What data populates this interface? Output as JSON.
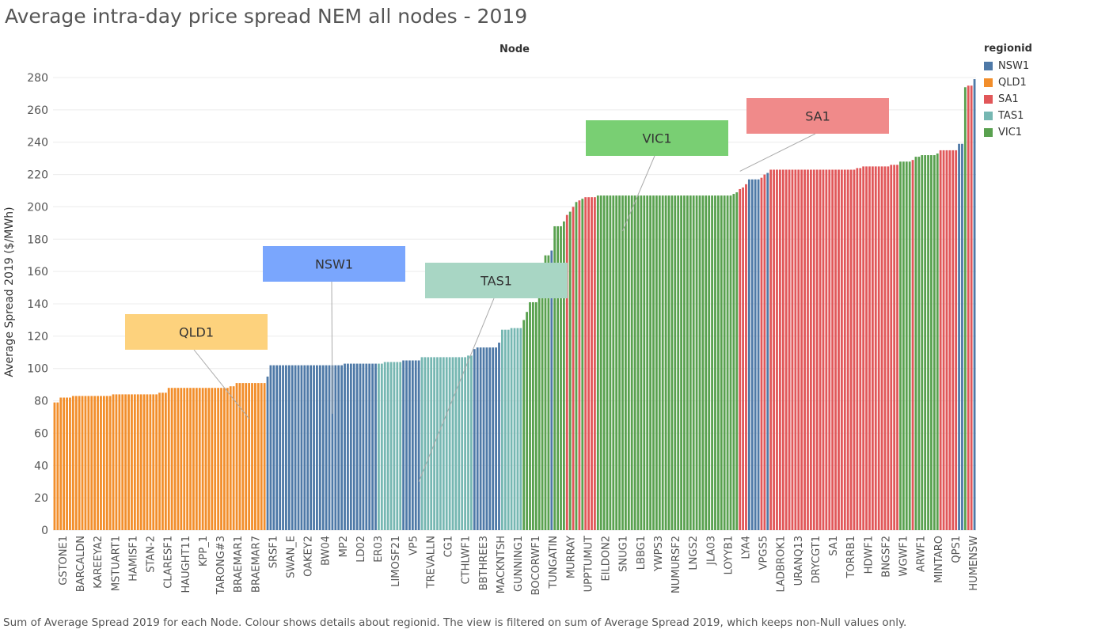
{
  "page": {
    "title": "Average intra-day price spread NEM all nodes - 2019",
    "caption": "Sum of Average Spread 2019 for each Node.  Colour shows details about regionid. The view is filtered on sum of Average Spread 2019, which keeps non-Null values only."
  },
  "colors": {
    "NSW1": "#4e79a7",
    "QLD1": "#f28e2b",
    "SA1": "#e15759",
    "TAS1": "#76b7b2",
    "VIC1": "#59a14f",
    "grid": "#ececec"
  },
  "legend": {
    "title": "regionid",
    "items": [
      {
        "label": "NSW1",
        "color": "#4e79a7"
      },
      {
        "label": "QLD1",
        "color": "#f28e2b"
      },
      {
        "label": "SA1",
        "color": "#e15759"
      },
      {
        "label": "TAS1",
        "color": "#76b7b2"
      },
      {
        "label": "VIC1",
        "color": "#59a14f"
      }
    ]
  },
  "chart_data": {
    "type": "bar",
    "xlabel": "Node",
    "ylabel": "Average Spread 2019 ($/MWh)",
    "ylim": [
      0,
      280
    ],
    "yticks": [
      0,
      20,
      40,
      60,
      80,
      100,
      120,
      140,
      160,
      180,
      200,
      220,
      240,
      260,
      280
    ],
    "grid": true,
    "legend_position": "right",
    "categories": [
      "GSTONE1",
      "BARCALDN",
      "KAREEYA2",
      "MSTUART1",
      "HAMISF1",
      "STAN-2",
      "CLARESF1",
      "HAUGHT11",
      "KPP_1",
      "TARONG#3",
      "BRAEMAR1",
      "BRAEMAR7",
      "SRSF1",
      "SWAN_E",
      "OAKEY2",
      "BW04",
      "MP2",
      "LD02",
      "ER03",
      "LIMOSF21",
      "VP5",
      "TREVALLN",
      "CG1",
      "CTHLWF1",
      "BBTHREE3",
      "MACKNTSH",
      "GUNNING1",
      "BOCORWF1",
      "TUNGATIN",
      "MURRAY",
      "UPPTUMUT",
      "EILDON2",
      "SNUG1",
      "LBBG1",
      "YWPS3",
      "NUMURSF2",
      "LNGS2",
      "JLA03",
      "LOYYB1",
      "LYA4",
      "VPGS5",
      "LADBROK1",
      "URANQ13",
      "DRYCGT1",
      "SA1",
      "TORRB1",
      "HDWF1",
      "BNGSF2",
      "WGWF1",
      "ARWF1",
      "MINTARO",
      "QPS1",
      "HUMENSW"
    ],
    "segments": [
      {
        "region": "QLD1",
        "values": [
          79,
          79,
          82,
          82,
          82,
          82,
          83,
          83,
          83,
          83,
          83,
          83,
          83,
          83,
          83,
          83,
          83,
          83,
          83,
          84,
          84,
          84,
          84,
          84,
          84,
          84,
          84,
          84,
          84,
          84,
          84,
          84,
          84,
          84,
          85,
          85,
          85,
          88,
          88,
          88,
          88,
          88,
          88,
          88,
          88,
          88,
          88,
          88,
          88,
          88,
          88,
          88,
          88,
          88,
          88,
          88,
          88,
          89,
          89,
          91,
          91,
          91,
          91,
          91,
          91,
          91,
          91,
          91,
          91
        ]
      },
      {
        "region": "NSW1",
        "values": [
          95,
          102,
          102,
          102,
          102,
          102,
          102,
          102,
          102,
          102,
          102,
          102,
          102,
          102,
          102,
          102,
          102,
          102,
          102,
          102,
          102,
          102,
          102,
          102,
          102,
          103,
          103,
          103,
          103,
          103,
          103,
          103,
          103,
          103,
          103,
          103
        ]
      },
      {
        "region": "TAS1",
        "values": [
          103,
          103,
          104,
          104,
          104,
          104,
          104,
          104
        ]
      },
      {
        "region": "NSW1",
        "values": [
          105,
          105,
          105,
          105,
          105,
          105
        ]
      },
      {
        "region": "TAS1",
        "values": [
          107,
          107,
          107,
          107,
          107,
          107,
          107,
          107,
          107,
          107,
          107,
          107,
          107,
          107,
          107,
          108,
          108
        ]
      },
      {
        "region": "NSW1",
        "values": [
          112,
          113,
          113,
          113,
          113,
          113,
          113,
          113,
          116
        ]
      },
      {
        "region": "TAS1",
        "values": [
          124,
          124,
          124,
          125,
          125,
          125,
          125
        ]
      },
      {
        "region": "VIC1",
        "values": [
          130,
          135,
          141,
          141,
          141,
          146,
          162,
          170,
          170
        ]
      },
      {
        "region": "NSW1",
        "values": [
          173
        ]
      },
      {
        "region": "VIC1",
        "values": [
          188,
          188,
          188,
          191
        ]
      },
      {
        "region": "SA1",
        "values": [
          195
        ]
      },
      {
        "region": "VIC1",
        "values": [
          197
        ]
      },
      {
        "region": "SA1",
        "values": [
          200
        ]
      },
      {
        "region": "VIC1",
        "values": [
          203
        ]
      },
      {
        "region": "SA1",
        "values": [
          204
        ]
      },
      {
        "region": "VIC1",
        "values": [
          205
        ]
      },
      {
        "region": "SA1",
        "values": [
          206,
          206,
          206,
          206
        ]
      },
      {
        "region": "VIC1",
        "values": [
          207,
          207,
          207,
          207,
          207,
          207,
          207,
          207,
          207,
          207,
          207,
          207,
          207,
          207,
          207,
          207,
          207,
          207,
          207,
          207,
          207,
          207,
          207,
          207,
          207,
          207,
          207,
          207,
          207,
          207,
          207,
          207,
          207,
          207,
          207,
          207,
          207,
          207,
          207,
          207,
          207,
          207,
          207,
          207,
          208,
          209
        ]
      },
      {
        "region": "SA1",
        "values": [
          211,
          212,
          214
        ]
      },
      {
        "region": "NSW1",
        "values": [
          217,
          217,
          217,
          217
        ]
      },
      {
        "region": "SA1",
        "values": [
          218,
          220
        ]
      },
      {
        "region": "NSW1",
        "values": [
          221
        ]
      },
      {
        "region": "SA1",
        "values": [
          223,
          223,
          223,
          223,
          223,
          223,
          223,
          223,
          223,
          223,
          223,
          223,
          223,
          223,
          223,
          223,
          223,
          223,
          223,
          223,
          223,
          223,
          223,
          223,
          223,
          223,
          223,
          223,
          224,
          224,
          225,
          225,
          225,
          225,
          225,
          225,
          225,
          225,
          225,
          226,
          226,
          226
        ]
      },
      {
        "region": "VIC1",
        "values": [
          228,
          228,
          228,
          228
        ]
      },
      {
        "region": "SA1",
        "values": [
          229
        ]
      },
      {
        "region": "VIC1",
        "values": [
          231,
          231,
          232,
          232,
          232,
          232,
          232,
          233
        ]
      },
      {
        "region": "SA1",
        "values": [
          235,
          235,
          235,
          235,
          235,
          235
        ]
      },
      {
        "region": "NSW1",
        "values": [
          239,
          239
        ]
      },
      {
        "region": "VIC1",
        "values": [
          274
        ]
      },
      {
        "region": "SA1",
        "values": [
          275,
          275
        ]
      },
      {
        "region": "NSW1",
        "values": [
          279
        ]
      }
    ],
    "annotations": [
      {
        "label": "QLD1",
        "region": "QLD1",
        "color": "#fdd27d",
        "target_bar": 63,
        "target_value": 69
      },
      {
        "label": "NSW1",
        "region": "NSW1",
        "color": "#7aa6fd",
        "target_bar": 90,
        "target_value": 72
      },
      {
        "label": "TAS1",
        "region": "TAS1",
        "color": "#a8d6c4",
        "target_bar": 118,
        "target_value": 30
      },
      {
        "label": "VIC1",
        "region": "VIC1",
        "color": "#79cf73",
        "target_bar": 184,
        "target_value": 185
      },
      {
        "label": "SA1",
        "region": "SA1",
        "color": "#f08a8a",
        "target_bar": 222,
        "target_value": 222
      }
    ]
  }
}
